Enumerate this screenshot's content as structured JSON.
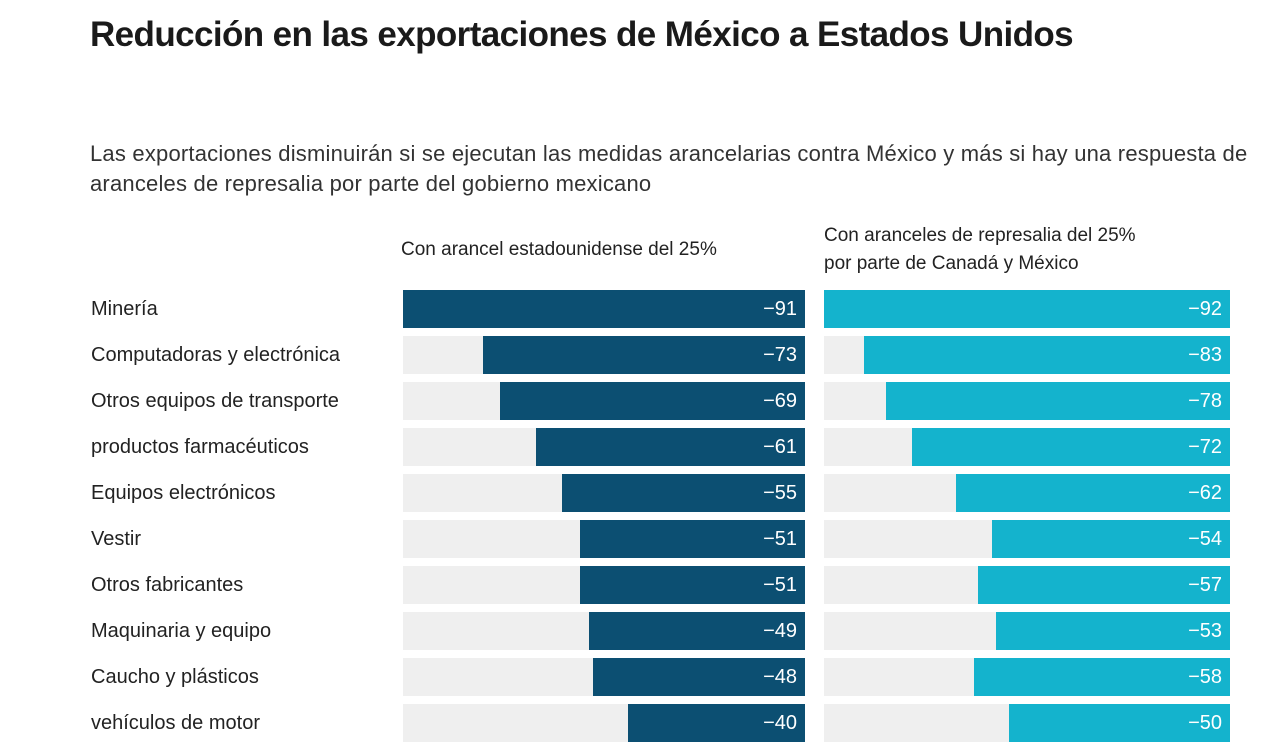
{
  "chart_data": {
    "type": "bar",
    "orientation": "horizontal",
    "title": "Reducción en las exportaciones de México a Estados Unidos",
    "subtitle": "Las exportaciones disminuirán si se ejecutan las medidas arancelarias contra México y más si hay una respuesta de aranceles de represalia por parte del gobierno mexicano",
    "categories": [
      "Minería",
      "Computadoras y electrónica",
      "Otros equipos de transporte",
      "productos farmacéuticos",
      "Equipos electrónicos",
      "Vestir",
      "Otros fabricantes",
      "Maquinaria y equipo",
      "Caucho y plásticos",
      "vehículos de motor"
    ],
    "series": [
      {
        "name": "Con arancel estadounidense del 25%",
        "color": "#0c4f72",
        "values": [
          -91,
          -73,
          -69,
          -61,
          -55,
          -51,
          -51,
          -49,
          -48,
          -40
        ],
        "xlim": [
          -91,
          0
        ]
      },
      {
        "name": "Con aranceles de represalia del 25% por parte de Canadá y México",
        "name_lines": [
          "Con aranceles de represalia del 25%",
          "por parte de Canadá y México"
        ],
        "color": "#14b3cd",
        "values": [
          -92,
          -83,
          -78,
          -72,
          -62,
          -54,
          -57,
          -53,
          -58,
          -50
        ],
        "xlim": [
          -92,
          0
        ]
      }
    ],
    "value_labels": [
      "−91",
      "−73",
      "−69",
      "−61",
      "−55",
      "−51",
      "−51",
      "−49",
      "−48",
      "−40",
      "−92",
      "−83",
      "−78",
      "−72",
      "−62",
      "−54",
      "−57",
      "−53",
      "−58",
      "−50"
    ],
    "track_color": "#efefef",
    "grid": false,
    "legend": "none"
  }
}
